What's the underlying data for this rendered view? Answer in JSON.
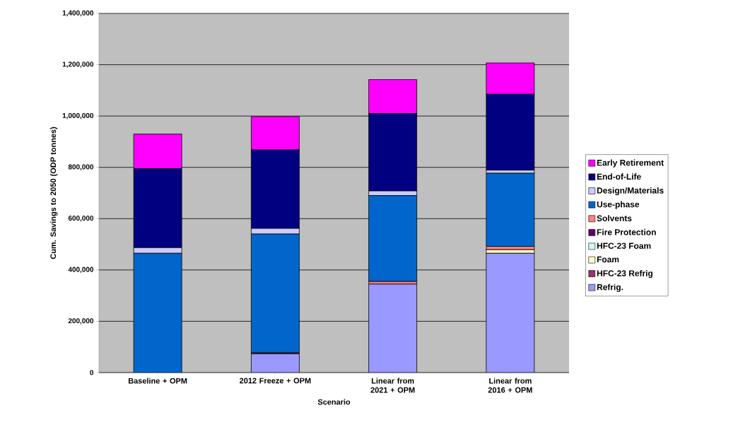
{
  "chart_data": {
    "type": "bar",
    "stacked": true,
    "xlabel": "Scenario",
    "ylabel": "Cum. Savings to 2050 (ODP tonnes)",
    "categories": [
      "Baseline + OPM",
      "2012 Freeze + OPM",
      "Linear from 2021 + OPM",
      "Linear from 2016 + OPM"
    ],
    "series": [
      {
        "name": "Refrig.",
        "color": "#9999ff",
        "values": [
          0,
          73000,
          345000,
          465000
        ]
      },
      {
        "name": "HFC-23 Refrig",
        "color": "#993366",
        "values": [
          0,
          4000,
          0,
          0
        ]
      },
      {
        "name": "Foam",
        "color": "#ffffcc",
        "values": [
          0,
          0,
          0,
          14000
        ]
      },
      {
        "name": "HFC-23 Foam",
        "color": "#ccffff",
        "values": [
          0,
          0,
          0,
          0
        ]
      },
      {
        "name": "Fire Protection",
        "color": "#660066",
        "values": [
          0,
          0,
          0,
          0
        ]
      },
      {
        "name": "Solvents",
        "color": "#ff8080",
        "values": [
          0,
          0,
          10000,
          13000
        ]
      },
      {
        "name": "Use-phase",
        "color": "#0066cc",
        "values": [
          465000,
          463000,
          335000,
          285000
        ]
      },
      {
        "name": "Design/Materials",
        "color": "#ccccff",
        "values": [
          22000,
          22000,
          18000,
          12000
        ]
      },
      {
        "name": "End-of-Life",
        "color": "#000080",
        "values": [
          308000,
          306000,
          302000,
          296000
        ]
      },
      {
        "name": "Early Retirement",
        "color": "#ff00ff",
        "values": [
          135000,
          130000,
          132000,
          122000
        ]
      }
    ],
    "ylim": [
      0,
      1400000
    ],
    "yticks": [
      {
        "value": 0,
        "label": "0"
      },
      {
        "value": 200000,
        "label": "200,000"
      },
      {
        "value": 400000,
        "label": "400,000"
      },
      {
        "value": 600000,
        "label": "600,000"
      },
      {
        "value": 800000,
        "label": "800,000"
      },
      {
        "value": 1000000,
        "label": "1,000,000"
      },
      {
        "value": 1200000,
        "label": "1,200,000"
      },
      {
        "value": 1400000,
        "label": "1,400,000"
      }
    ],
    "grid": "y",
    "legend": "right"
  }
}
